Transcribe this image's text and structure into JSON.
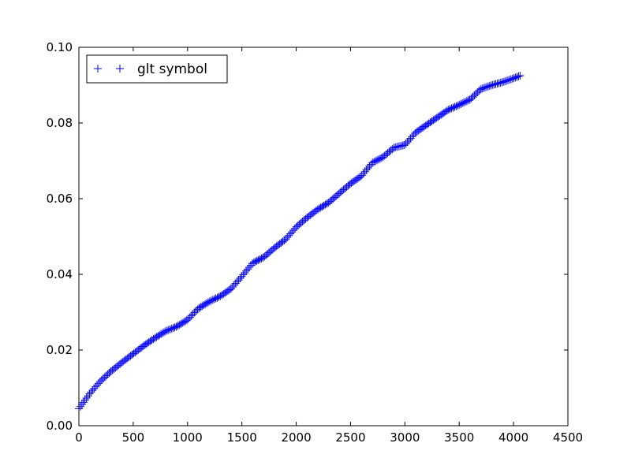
{
  "chart_data": {
    "type": "scatter",
    "marker": "+",
    "color": "#0000ff",
    "xlim": [
      0,
      4500
    ],
    "ylim": [
      0,
      0.1
    ],
    "xticks": [
      0,
      500,
      1000,
      1500,
      2000,
      2500,
      3000,
      3500,
      4000,
      4500
    ],
    "xtick_labels": [
      "0",
      "500",
      "1000",
      "1500",
      "2000",
      "2500",
      "3000",
      "3500",
      "4000",
      "4500"
    ],
    "yticks": [
      0,
      0.02,
      0.04,
      0.06,
      0.08,
      0.1
    ],
    "ytick_labels": [
      "0.00",
      "0.02",
      "0.04",
      "0.06",
      "0.08",
      "0.10"
    ],
    "grid": false,
    "legend_position": "top-left",
    "series": [
      {
        "name": "glt symbol",
        "x_range": [
          0,
          4060
        ],
        "step": 14,
        "curve_x": [
          0,
          100,
          200,
          300,
          400,
          500,
          600,
          700,
          800,
          900,
          1000,
          1100,
          1200,
          1300,
          1400,
          1500,
          1600,
          1700,
          1800,
          1900,
          2000,
          2100,
          2200,
          2300,
          2400,
          2500,
          2600,
          2700,
          2800,
          2900,
          3000,
          3100,
          3200,
          3300,
          3400,
          3500,
          3600,
          3700,
          3800,
          3900,
          4000,
          4060
        ],
        "curve_y": [
          0.0045,
          0.0085,
          0.0118,
          0.0145,
          0.0168,
          0.019,
          0.0212,
          0.0232,
          0.025,
          0.0262,
          0.028,
          0.031,
          0.0328,
          0.0342,
          0.0362,
          0.0395,
          0.043,
          0.0445,
          0.047,
          0.0492,
          0.0525,
          0.055,
          0.0572,
          0.059,
          0.0615,
          0.064,
          0.066,
          0.0695,
          0.071,
          0.0735,
          0.0742,
          0.0775,
          0.0795,
          0.0815,
          0.0835,
          0.0848,
          0.0862,
          0.089,
          0.09,
          0.0908,
          0.0918,
          0.0925
        ]
      }
    ]
  }
}
